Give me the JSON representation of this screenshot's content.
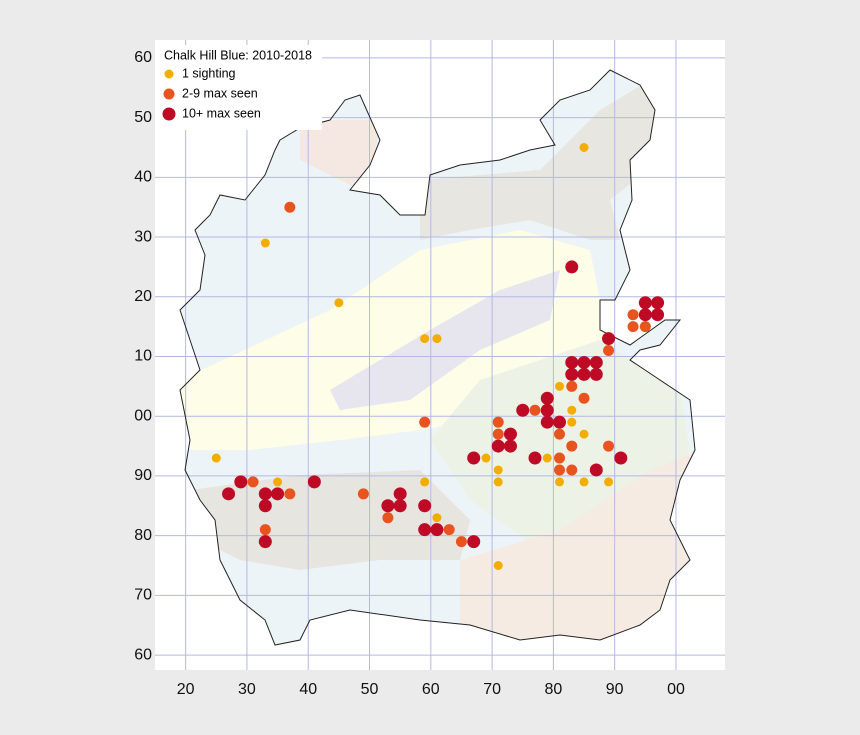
{
  "chart_data": {
    "type": "scatter",
    "title": "Chalk Hill Blue:  2010-2018",
    "xlim": [
      15,
      108
    ],
    "ylim": [
      57.5,
      163
    ],
    "grid": true,
    "legend": "upper left",
    "xticks": [
      20,
      30,
      40,
      50,
      60,
      70,
      80,
      90,
      {
        "value": 100,
        "label": "00"
      }
    ],
    "yticks": [
      60,
      70,
      80,
      90,
      {
        "value": 100,
        "label": "00"
      },
      {
        "value": 110,
        "label": "10"
      },
      {
        "value": 120,
        "label": "20"
      },
      {
        "value": 130,
        "label": "30"
      },
      {
        "value": 140,
        "label": "40"
      },
      {
        "value": 150,
        "label": "50"
      },
      {
        "value": 160,
        "label": "60"
      }
    ],
    "series": [
      {
        "name": "1 sighting",
        "color": "#f2ad00",
        "x": [
          85,
          33,
          45,
          59,
          61,
          81,
          83,
          83,
          85,
          25,
          69,
          79,
          71,
          35,
          59,
          71,
          81,
          85,
          89,
          61,
          71
        ],
        "y": [
          145,
          129,
          119,
          113,
          113,
          105,
          101,
          99,
          97,
          93,
          93,
          93,
          91,
          89,
          89,
          89,
          89,
          89,
          89,
          83,
          75
        ]
      },
      {
        "name": "2-9 max seen",
        "color": "#e8531e",
        "x": [
          37,
          93,
          93,
          95,
          89,
          83,
          85,
          77,
          59,
          71,
          71,
          81,
          89,
          83,
          81,
          81,
          83,
          31,
          37,
          49,
          53,
          33,
          63,
          65
        ],
        "y": [
          135,
          117,
          115,
          115,
          111,
          105,
          103,
          101,
          99,
          99,
          97,
          97,
          95,
          95,
          93,
          91,
          91,
          89,
          87,
          87,
          83,
          81,
          81,
          79
        ]
      },
      {
        "name": "10+ max seen",
        "color": "#bf0a26",
        "x": [
          83,
          95,
          97,
          95,
          97,
          89,
          83,
          85,
          87,
          83,
          85,
          87,
          79,
          79,
          79,
          81,
          75,
          73,
          73,
          71,
          67,
          77,
          91,
          87,
          29,
          27,
          33,
          35,
          41,
          55,
          53,
          55,
          33,
          59,
          59,
          61,
          33,
          67
        ],
        "y": [
          125,
          119,
          119,
          117,
          117,
          113,
          109,
          109,
          109,
          107,
          107,
          107,
          103,
          101,
          99,
          99,
          101,
          97,
          95,
          95,
          93,
          93,
          93,
          91,
          89,
          87,
          87,
          87,
          89,
          87,
          85,
          85,
          85,
          85,
          81,
          81,
          79,
          79
        ]
      }
    ]
  }
}
